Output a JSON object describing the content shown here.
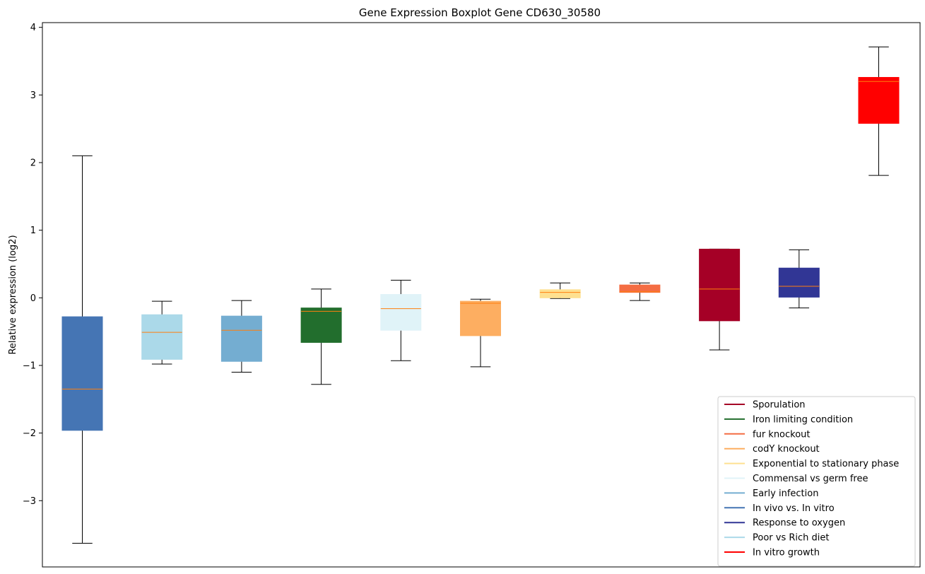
{
  "chart_data": {
    "type": "boxplot",
    "title": "Gene Expression Boxplot Gene CD630_30580",
    "xlabel": "",
    "ylabel": "Relative expression (log2)",
    "ylim": [
      -3.98,
      4.07
    ],
    "yticks": [
      -3,
      -2,
      -1,
      0,
      1,
      2,
      3,
      4
    ],
    "ytick_labels": [
      "−3",
      "−2",
      "−1",
      "0",
      "1",
      "2",
      "3",
      "4"
    ],
    "grid": false,
    "legend_position": "lower-right",
    "median_color": "#ff7f0e",
    "boxes": [
      {
        "series": "In vivo vs. In vitro",
        "color": "#4575b4",
        "whislo": -3.63,
        "q1": -1.96,
        "med": -1.35,
        "q3": -0.28,
        "whishi": 2.1
      },
      {
        "series": "Poor vs Rich diet",
        "color": "#abd9e9",
        "whislo": -0.98,
        "q1": -0.91,
        "med": -0.51,
        "q3": -0.25,
        "whishi": -0.05
      },
      {
        "series": "Early infection",
        "color": "#74add1",
        "whislo": -1.1,
        "q1": -0.94,
        "med": -0.48,
        "q3": -0.27,
        "whishi": -0.04
      },
      {
        "series": "Iron limiting condition",
        "color": "#226e2d",
        "whislo": -1.28,
        "q1": -0.66,
        "med": -0.2,
        "q3": -0.15,
        "whishi": 0.13
      },
      {
        "series": "Commensal vs germ free",
        "color": "#e0f3f8",
        "whislo": -0.93,
        "q1": -0.48,
        "med": -0.16,
        "q3": 0.05,
        "whishi": 0.26
      },
      {
        "series": "codY knockout",
        "color": "#fdae61",
        "whislo": -1.02,
        "q1": -0.56,
        "med": -0.08,
        "q3": -0.05,
        "whishi": -0.02
      },
      {
        "series": "Exponential to stationary phase",
        "color": "#fee090",
        "whislo": -0.01,
        "q1": 0.0,
        "med": 0.08,
        "q3": 0.12,
        "whishi": 0.22
      },
      {
        "series": "fur knockout",
        "color": "#f46d43",
        "whislo": -0.04,
        "q1": 0.08,
        "med": 0.09,
        "q3": 0.19,
        "whishi": 0.22
      },
      {
        "series": "Sporulation",
        "color": "#a50026",
        "whislo": -0.77,
        "q1": -0.34,
        "med": 0.13,
        "q3": 0.72,
        "whishi": 0.72
      },
      {
        "series": "Response to oxygen",
        "color": "#313695",
        "whislo": -0.15,
        "q1": 0.01,
        "med": 0.17,
        "q3": 0.44,
        "whishi": 0.71
      },
      {
        "series": "In vitro growth",
        "color": "#ff0000",
        "whislo": 1.81,
        "q1": 2.58,
        "med": 3.2,
        "q3": 3.26,
        "whishi": 3.71
      }
    ],
    "legend": [
      {
        "label": "Sporulation",
        "color": "#a50026"
      },
      {
        "label": "Iron limiting condition",
        "color": "#226e2d"
      },
      {
        "label": "fur knockout",
        "color": "#f46d43"
      },
      {
        "label": "codY knockout",
        "color": "#fdae61"
      },
      {
        "label": "Exponential to stationary phase",
        "color": "#fee090"
      },
      {
        "label": "Commensal vs germ free",
        "color": "#e0f3f8"
      },
      {
        "label": "Early infection",
        "color": "#74add1"
      },
      {
        "label": "In vivo vs. In vitro",
        "color": "#4575b4"
      },
      {
        "label": "Response to oxygen",
        "color": "#313695"
      },
      {
        "label": "Poor vs Rich diet",
        "color": "#abd9e9"
      },
      {
        "label": "In vitro growth",
        "color": "#ff0000"
      }
    ]
  }
}
